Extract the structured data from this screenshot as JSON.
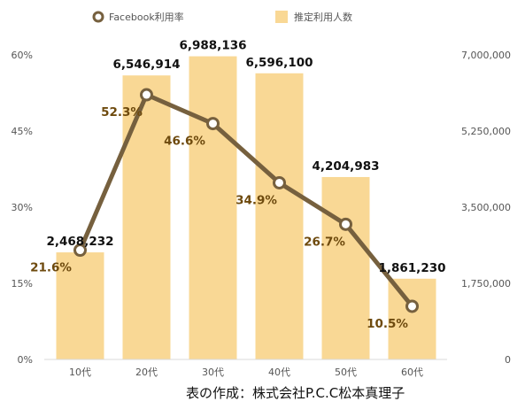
{
  "chart_data": {
    "type": "bar",
    "categories": [
      "10代",
      "20代",
      "30代",
      "40代",
      "50代",
      "60代"
    ],
    "series": [
      {
        "name": "推定利用人数",
        "chart_type": "bar",
        "axis": "right",
        "values": [
          2468232,
          6546914,
          6988136,
          6596100,
          4204983,
          1861230
        ],
        "labels": [
          "2,468,232",
          "6,546,914",
          "6,988,136",
          "6,596,100",
          "4,204,983",
          "1,861,230"
        ],
        "color": "#f9d895"
      },
      {
        "name": "Facebook利用率",
        "chart_type": "line",
        "axis": "left",
        "values": [
          21.6,
          52.3,
          46.6,
          34.9,
          26.7,
          10.5
        ],
        "labels": [
          "21.6%",
          "52.3%",
          "46.6%",
          "34.9%",
          "26.7%",
          "10.5%"
        ],
        "color": "#76603e"
      }
    ],
    "left_axis": {
      "ylim": [
        0,
        60
      ],
      "ticks": [
        "0%",
        "15%",
        "30%",
        "45%",
        "60%"
      ]
    },
    "right_axis": {
      "ylim": [
        0,
        7000000
      ],
      "ticks": [
        "0",
        "1,750,000",
        "3,500,000",
        "5,250,000",
        "7,000,000"
      ]
    },
    "grid": false,
    "legend_position": "top"
  },
  "caption": "表の作成：株式会社P.C.C松本真理子"
}
